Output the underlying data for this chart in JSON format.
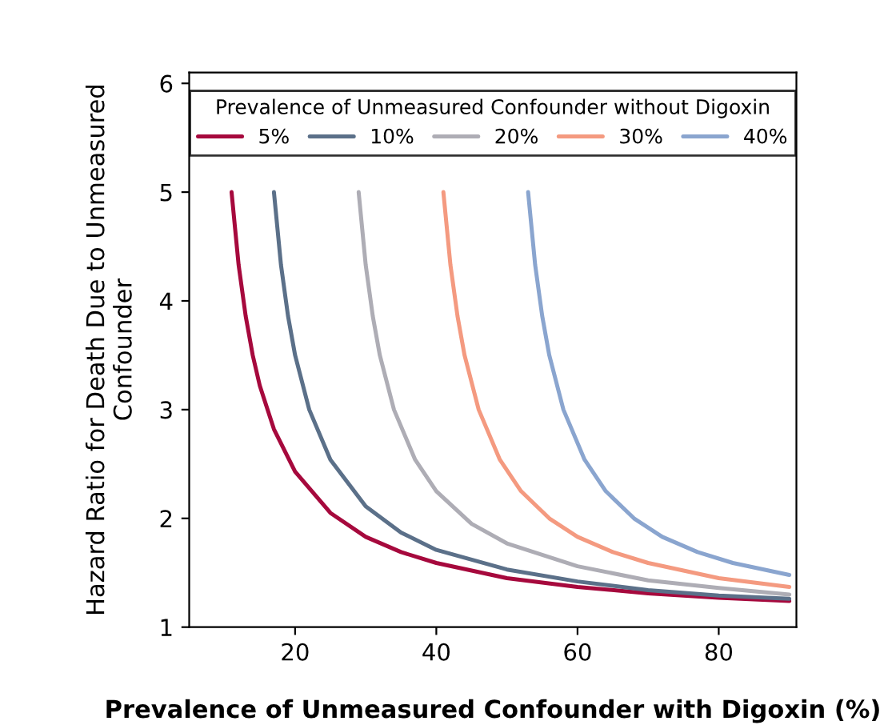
{
  "chart_data": {
    "type": "line",
    "xlabel": "Prevalence of Unmeasured Confounder with Digoxin (%)",
    "ylabel": "Hazard Ratio for Death Due to Unmeasured\nConfounder",
    "legend_title": "Prevalence of Unmeasured Confounder without Digoxin",
    "legend": "top",
    "grid": false,
    "marker": "none",
    "line_style": "solid",
    "xlim": [
      5,
      91
    ],
    "xticks": [
      20,
      40,
      60,
      80
    ],
    "ylim": [
      1,
      6.1
    ],
    "yticks": [
      1,
      2,
      3,
      4,
      5,
      6
    ],
    "series": [
      {
        "name": "5%",
        "color": "#a6093d",
        "x": [
          11,
          12,
          13,
          14,
          15,
          17,
          20,
          25,
          30,
          35,
          40,
          50,
          60,
          70,
          80,
          90
        ],
        "values": [
          5,
          4.33,
          3.86,
          3.5,
          3.22,
          2.82,
          2.43,
          2.05,
          1.83,
          1.69,
          1.59,
          1.45,
          1.37,
          1.31,
          1.27,
          1.24
        ]
      },
      {
        "name": "10%",
        "color": "#5b7089",
        "x": [
          17,
          18,
          19,
          20,
          22,
          25,
          30,
          35,
          40,
          50,
          60,
          70,
          80,
          90
        ],
        "values": [
          5,
          4.33,
          3.86,
          3.5,
          3.0,
          2.54,
          2.11,
          1.87,
          1.71,
          1.53,
          1.42,
          1.34,
          1.29,
          1.26
        ]
      },
      {
        "name": "20%",
        "color": "#aeadb5",
        "x": [
          29,
          30,
          31,
          32,
          34,
          37,
          40,
          45,
          50,
          60,
          70,
          80,
          90
        ],
        "values": [
          5,
          4.33,
          3.86,
          3.5,
          3.0,
          2.54,
          2.25,
          1.95,
          1.77,
          1.56,
          1.43,
          1.36,
          1.3
        ]
      },
      {
        "name": "30%",
        "color": "#f49a80",
        "x": [
          41,
          42,
          43,
          44,
          46,
          49,
          52,
          56,
          60,
          65,
          70,
          80,
          90
        ],
        "values": [
          5,
          4.33,
          3.86,
          3.5,
          3.0,
          2.54,
          2.25,
          2.0,
          1.83,
          1.69,
          1.59,
          1.45,
          1.37
        ]
      },
      {
        "name": "40%",
        "color": "#8aa5cf",
        "x": [
          53,
          54,
          55,
          56,
          58,
          61,
          64,
          68,
          72,
          77,
          82,
          90
        ],
        "values": [
          5,
          4.33,
          3.86,
          3.5,
          3.0,
          2.54,
          2.25,
          2.0,
          1.83,
          1.69,
          1.59,
          1.48
        ]
      }
    ]
  }
}
